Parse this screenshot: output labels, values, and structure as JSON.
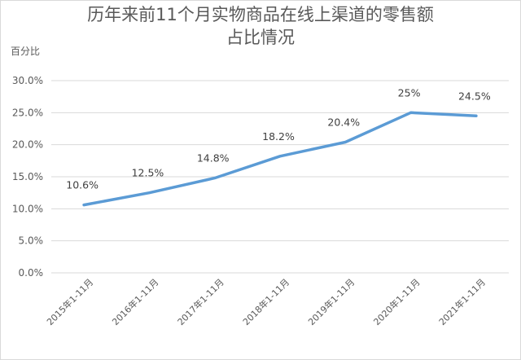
{
  "chart_data": {
    "type": "line",
    "title_line1": "历年来前11个月实物商品在线上渠道的零售额",
    "title_line2": "占比情况",
    "ylabel": "百分比",
    "categories": [
      "2015年1-11月",
      "2016年1-11月",
      "2017年1-11月",
      "2018年1-11月",
      "2019年1-11月",
      "2020年1-11月",
      "2021年1-11月"
    ],
    "values": [
      10.6,
      12.5,
      14.8,
      18.2,
      20.4,
      25.0,
      24.5
    ],
    "data_labels": [
      "10.6%",
      "12.5%",
      "14.8%",
      "18.2%",
      "20.4%",
      "25%",
      "24.5%"
    ],
    "yticks": [
      "0.0%",
      "5.0%",
      "10.0%",
      "15.0%",
      "20.0%",
      "25.0%",
      "30.0%"
    ],
    "ylim": [
      0,
      30
    ],
    "grid": true,
    "line_color": "#5b9bd5"
  }
}
